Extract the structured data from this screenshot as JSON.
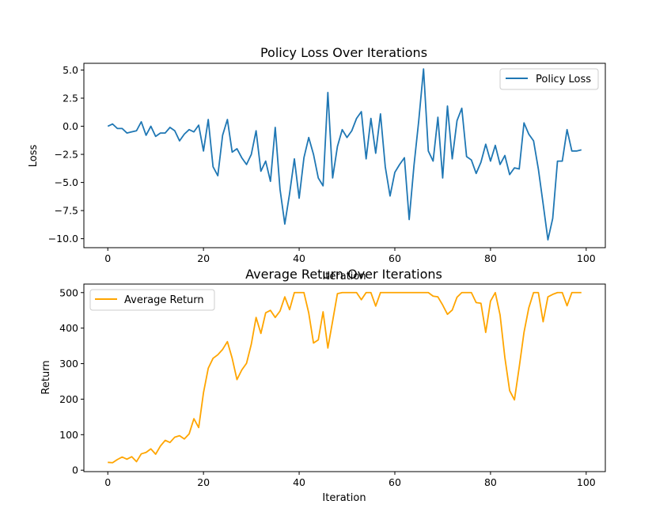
{
  "chart_data": [
    {
      "type": "line",
      "title": "Policy Loss Over Iterations",
      "xlabel": "Iteration",
      "ylabel": "Loss",
      "xlim": [
        -5,
        104
      ],
      "ylim": [
        -10.8,
        5.6
      ],
      "xticks": [
        0,
        20,
        40,
        60,
        80,
        100
      ],
      "yticks": [
        -10.0,
        -7.5,
        -5.0,
        -2.5,
        0.0,
        2.5,
        5.0
      ],
      "ytick_labels": [
        "−10.0",
        "−7.5",
        "−5.0",
        "−2.5",
        "0.0",
        "2.5",
        "5.0"
      ],
      "xtick_labels": [
        "0",
        "20",
        "40",
        "60",
        "80",
        "100"
      ],
      "grid": false,
      "legend_position": "top-right",
      "series": [
        {
          "name": "Policy Loss",
          "color": "#1f77b4",
          "x": [
            0,
            1,
            2,
            3,
            4,
            5,
            6,
            7,
            8,
            9,
            10,
            11,
            12,
            13,
            14,
            15,
            16,
            17,
            18,
            19,
            20,
            21,
            22,
            23,
            24,
            25,
            26,
            27,
            28,
            29,
            30,
            31,
            32,
            33,
            34,
            35,
            36,
            37,
            38,
            39,
            40,
            41,
            42,
            43,
            44,
            45,
            46,
            47,
            48,
            49,
            50,
            51,
            52,
            53,
            54,
            55,
            56,
            57,
            58,
            59,
            60,
            61,
            62,
            63,
            64,
            65,
            66,
            67,
            68,
            69,
            70,
            71,
            72,
            73,
            74,
            75,
            76,
            77,
            78,
            79,
            80,
            81,
            82,
            83,
            84,
            85,
            86,
            87,
            88,
            89,
            90,
            91,
            92,
            93,
            94,
            95,
            96,
            97,
            98,
            99
          ],
          "values": [
            0.0,
            0.2,
            -0.2,
            -0.2,
            -0.6,
            -0.5,
            -0.4,
            0.4,
            -0.8,
            0.0,
            -0.9,
            -0.6,
            -0.6,
            -0.1,
            -0.4,
            -1.3,
            -0.7,
            -0.3,
            -0.5,
            0.1,
            -2.2,
            0.6,
            -3.6,
            -4.4,
            -0.8,
            0.6,
            -2.3,
            -2.0,
            -2.8,
            -3.4,
            -2.5,
            -0.4,
            -4.0,
            -3.1,
            -4.9,
            -0.1,
            -5.6,
            -8.7,
            -6.0,
            -2.9,
            -6.4,
            -2.8,
            -1.0,
            -2.5,
            -4.6,
            -5.3,
            3.0,
            -4.6,
            -1.8,
            -0.3,
            -1.0,
            -0.4,
            0.7,
            1.3,
            -2.9,
            0.7,
            -2.4,
            1.1,
            -3.6,
            -6.2,
            -4.1,
            -3.4,
            -2.8,
            -8.3,
            -3.5,
            0.5,
            5.1,
            -2.2,
            -3.1,
            0.8,
            -4.6,
            1.8,
            -2.9,
            0.5,
            1.6,
            -2.7,
            -3.0,
            -4.2,
            -3.2,
            -1.6,
            -3.1,
            -1.7,
            -3.4,
            -2.6,
            -4.3,
            -3.7,
            -3.8,
            0.3,
            -0.7,
            -1.3,
            -3.8,
            -6.9,
            -10.1,
            -8.2,
            -3.1,
            -3.1,
            -0.3,
            -2.2,
            -2.2,
            -2.1
          ]
        }
      ]
    },
    {
      "type": "line",
      "title": "Average Return Over Iterations",
      "xlabel": "Iteration",
      "ylabel": "Return",
      "xlim": [
        -5,
        104
      ],
      "ylim": [
        -4,
        524
      ],
      "xticks": [
        0,
        20,
        40,
        60,
        80,
        100
      ],
      "yticks": [
        0,
        100,
        200,
        300,
        400,
        500
      ],
      "ytick_labels": [
        "0",
        "100",
        "200",
        "300",
        "400",
        "500"
      ],
      "xtick_labels": [
        "0",
        "20",
        "40",
        "60",
        "80",
        "100"
      ],
      "grid": false,
      "legend_position": "top-left",
      "series": [
        {
          "name": "Average Return",
          "color": "#ffa500",
          "x": [
            0,
            1,
            2,
            3,
            4,
            5,
            6,
            7,
            8,
            9,
            10,
            11,
            12,
            13,
            14,
            15,
            16,
            17,
            18,
            19,
            20,
            21,
            22,
            23,
            24,
            25,
            26,
            27,
            28,
            29,
            30,
            31,
            32,
            33,
            34,
            35,
            36,
            37,
            38,
            39,
            40,
            41,
            42,
            43,
            44,
            45,
            46,
            47,
            48,
            49,
            50,
            51,
            52,
            53,
            54,
            55,
            56,
            57,
            58,
            59,
            60,
            61,
            62,
            63,
            64,
            65,
            66,
            67,
            68,
            69,
            70,
            71,
            72,
            73,
            74,
            75,
            76,
            77,
            78,
            79,
            80,
            81,
            82,
            83,
            84,
            85,
            86,
            87,
            88,
            89,
            90,
            91,
            92,
            93,
            94,
            95,
            96,
            97,
            98,
            99
          ],
          "values": [
            22,
            21,
            30,
            37,
            31,
            38,
            24,
            46,
            50,
            60,
            45,
            68,
            84,
            78,
            93,
            97,
            88,
            102,
            145,
            120,
            218,
            287,
            315,
            325,
            340,
            362,
            315,
            255,
            282,
            301,
            355,
            430,
            385,
            443,
            450,
            430,
            448,
            488,
            452,
            500,
            500,
            500,
            443,
            358,
            367,
            446,
            344,
            420,
            497,
            500,
            500,
            500,
            500,
            480,
            500,
            500,
            462,
            500,
            500,
            500,
            500,
            500,
            500,
            500,
            500,
            500,
            500,
            500,
            490,
            488,
            465,
            439,
            451,
            487,
            500,
            500,
            500,
            472,
            470,
            388,
            476,
            500,
            437,
            317,
            224,
            198,
            290,
            388,
            457,
            500,
            500,
            418,
            488,
            495,
            500,
            500,
            463,
            500,
            500,
            500
          ]
        }
      ]
    }
  ]
}
